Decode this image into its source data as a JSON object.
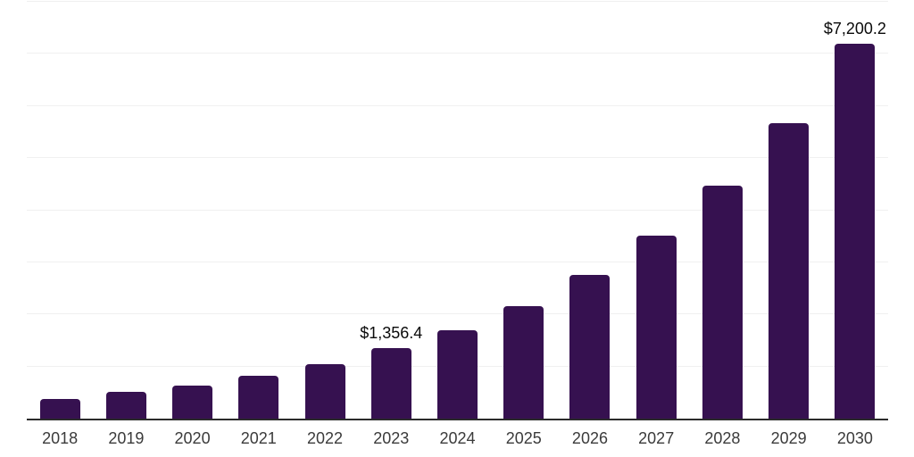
{
  "chart_data": {
    "type": "bar",
    "title": "",
    "xlabel": "",
    "ylabel": "",
    "categories": [
      "2018",
      "2019",
      "2020",
      "2021",
      "2022",
      "2023",
      "2024",
      "2025",
      "2026",
      "2027",
      "2028",
      "2029",
      "2030"
    ],
    "values": [
      370,
      510,
      630,
      820,
      1040,
      1356.4,
      1690,
      2160,
      2760,
      3510,
      4470,
      5670,
      7200.2
    ],
    "value_labels": [
      "",
      "",
      "",
      "",
      "",
      "$1,356.4",
      "",
      "",
      "",
      "",
      "",
      "",
      "$7,200.2"
    ],
    "ylim": [
      0,
      8000
    ],
    "grid_interval": 1000,
    "grid": true,
    "legend": "none",
    "y_axis_tick_labels_visible": false,
    "colors": {
      "bar": "#361150",
      "axis": "#2B2B2B",
      "gridline": "#F0F0F0",
      "value_label": "#0A0A0A",
      "tick_label": "#3B3B3B",
      "background": "#FFFFFF"
    }
  }
}
